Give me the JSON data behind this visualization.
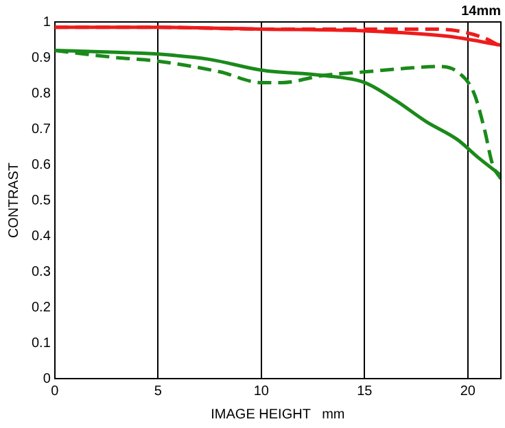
{
  "chart_data": {
    "type": "line",
    "title": "14mm",
    "xlabel": "IMAGE HEIGHT   mm",
    "ylabel": "CONTRAST",
    "xlim": [
      0,
      21.6
    ],
    "xticks": [
      0,
      5,
      10,
      15,
      20
    ],
    "ylim": [
      0,
      1
    ],
    "yticks": [
      0,
      0.1,
      0.2,
      0.3,
      0.4,
      0.5,
      0.6,
      0.7,
      0.8,
      0.9,
      1
    ],
    "grid": "x",
    "legend": false,
    "marker": "none",
    "series": [
      {
        "color": "#ee1c1c",
        "line_style": "solid",
        "x": [
          0,
          5,
          10,
          15,
          19,
          21.6
        ],
        "values": [
          0.985,
          0.985,
          0.98,
          0.975,
          0.96,
          0.935
        ]
      },
      {
        "color": "#ee1c1c",
        "line_style": "dashed",
        "x": [
          0,
          5,
          10,
          15,
          18,
          19.5,
          21,
          21.6
        ],
        "values": [
          0.985,
          0.985,
          0.98,
          0.98,
          0.98,
          0.975,
          0.95,
          0.93
        ]
      },
      {
        "color": "#1a8a1a",
        "line_style": "solid",
        "x": [
          0,
          3,
          5,
          7.5,
          10,
          13,
          15,
          16.5,
          18,
          19.5,
          20.5,
          21.6
        ],
        "values": [
          0.92,
          0.915,
          0.91,
          0.895,
          0.865,
          0.85,
          0.83,
          0.78,
          0.72,
          0.67,
          0.62,
          0.57
        ]
      },
      {
        "color": "#1a8a1a",
        "line_style": "dashed",
        "x": [
          0,
          3,
          5,
          8,
          10,
          11,
          13,
          15,
          17,
          18.5,
          19.5,
          20.3,
          20.8,
          21.2,
          21.6
        ],
        "values": [
          0.92,
          0.9,
          0.89,
          0.86,
          0.83,
          0.83,
          0.85,
          0.86,
          0.87,
          0.875,
          0.86,
          0.8,
          0.7,
          0.6,
          0.56
        ]
      }
    ]
  }
}
